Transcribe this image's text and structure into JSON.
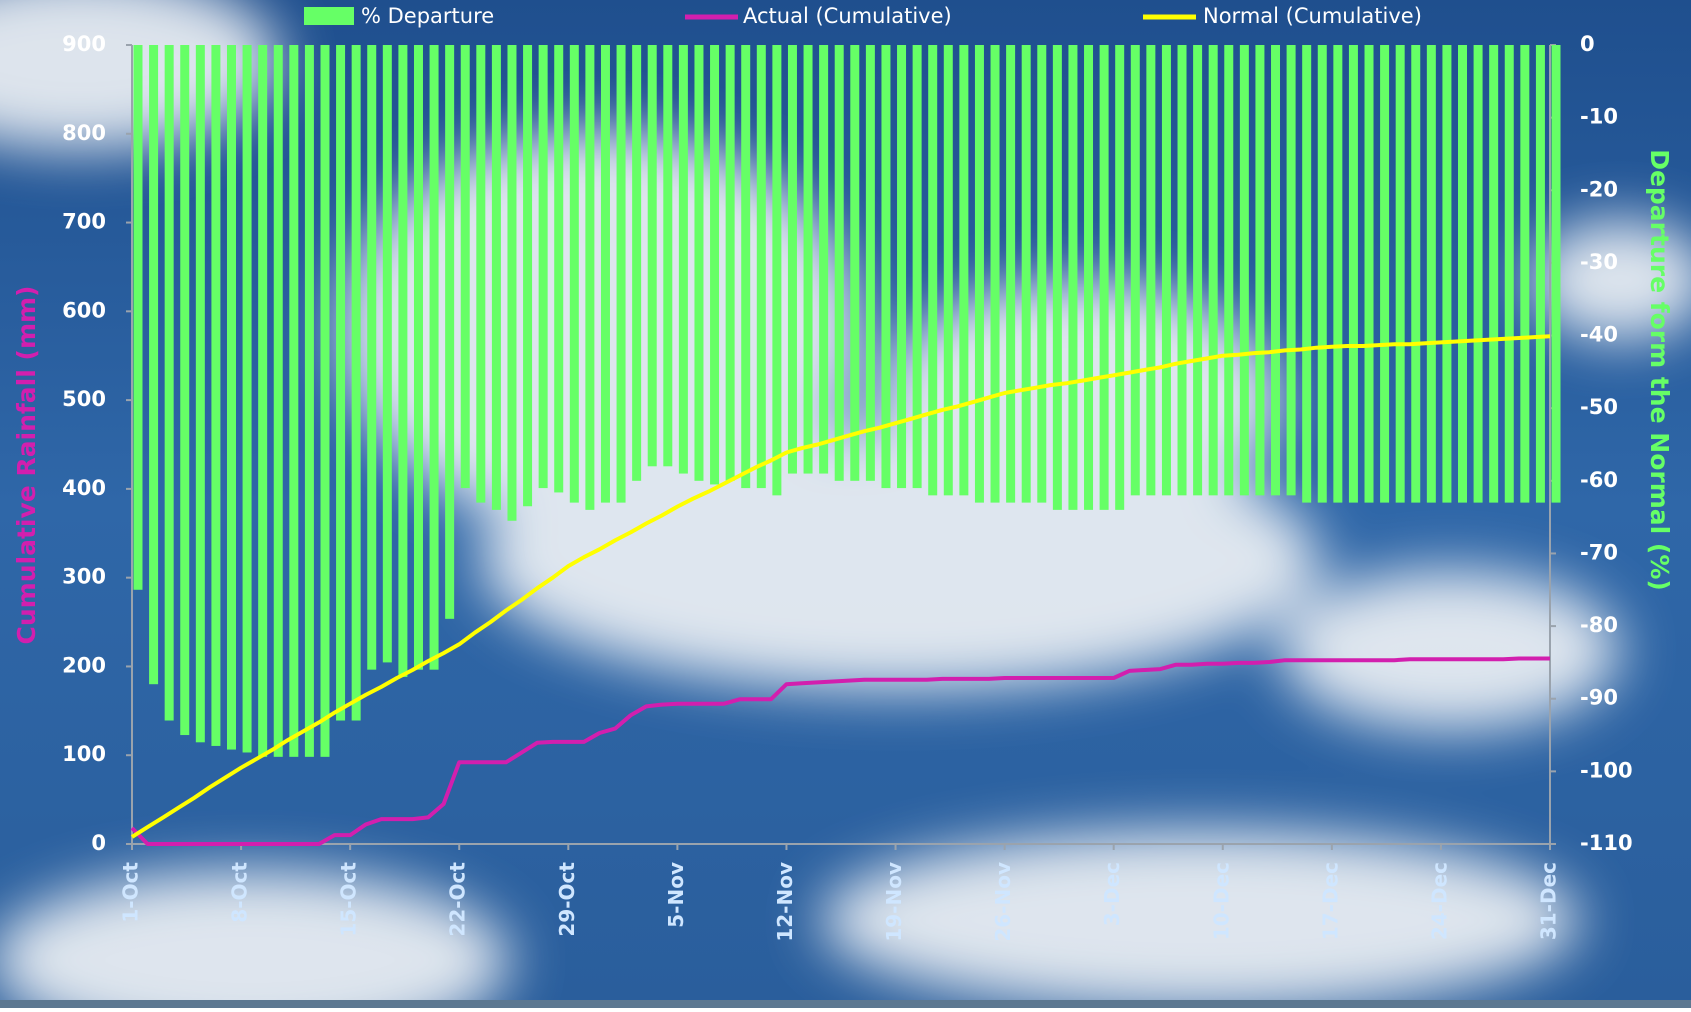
{
  "chart_data": {
    "type": "combo",
    "ylabel": "Cumulative Rainfall (mm)",
    "y2label": "Departure form the Normal (%)",
    "categories": [
      "1-Oct",
      null,
      null,
      null,
      null,
      null,
      null,
      "8-Oct",
      null,
      null,
      null,
      null,
      null,
      null,
      "15-Oct",
      null,
      null,
      null,
      null,
      null,
      null,
      "22-Oct",
      null,
      null,
      null,
      null,
      null,
      null,
      "29-Oct",
      null,
      null,
      null,
      null,
      null,
      null,
      "5-Nov",
      null,
      null,
      null,
      null,
      null,
      null,
      "12-Nov",
      null,
      null,
      null,
      null,
      null,
      null,
      "19-Nov",
      null,
      null,
      null,
      null,
      null,
      null,
      "26-Nov",
      null,
      null,
      null,
      null,
      null,
      null,
      "3-Dec",
      null,
      null,
      null,
      null,
      null,
      null,
      "10-Dec",
      null,
      null,
      null,
      null,
      null,
      null,
      "17-Dec",
      null,
      null,
      null,
      null,
      null,
      null,
      "24-Dec",
      null,
      null,
      null,
      null,
      null,
      null,
      "31-Dec"
    ],
    "series": [
      {
        "name": "% Departure",
        "type": "bar",
        "axis": "y2",
        "color": "#66ff66",
        "values": [
          -75,
          -88,
          -93,
          -95,
          -96,
          -96.5,
          -97,
          -97.4,
          -98,
          -98,
          -98,
          -98,
          -98,
          -93,
          -93,
          -86,
          -85,
          -87,
          -86,
          -86,
          -79,
          -61,
          -63,
          -64,
          -65.5,
          -63.5,
          -61,
          -61.6,
          -63,
          -64,
          -63,
          -63,
          -60,
          -58,
          -58,
          -59,
          -60,
          -60.5,
          -60,
          -61,
          -61,
          -62,
          -59,
          -59,
          -59,
          -60,
          -60,
          -60,
          -61,
          -61,
          -61,
          -62,
          -62,
          -62,
          -63,
          -63,
          -63,
          -63,
          -63,
          -64,
          -64,
          -64,
          -64,
          -64,
          -62,
          -62,
          -62,
          -62,
          -62,
          -62,
          -62,
          -62,
          -62,
          -62,
          -62,
          -63,
          -63,
          -63,
          -63,
          -63,
          -63,
          -63,
          -63,
          -63,
          -63,
          -63,
          -63,
          -63,
          -63,
          -63,
          -63,
          -63
        ]
      },
      {
        "name": "Actual (Cumulative)",
        "type": "line",
        "axis": "y",
        "color": "#d21fae",
        "values": [
          18,
          0,
          0,
          0,
          0,
          0,
          0,
          0,
          0,
          0,
          0,
          0,
          0,
          10,
          10,
          22,
          28,
          28,
          28,
          30,
          45,
          92,
          92,
          92,
          92,
          103,
          114,
          115,
          115,
          115,
          125,
          130,
          145,
          155,
          157,
          158,
          158,
          158,
          158,
          163,
          163,
          163,
          180,
          181,
          182,
          183,
          184,
          185,
          185,
          185,
          185,
          185,
          186,
          186,
          186,
          186,
          187,
          187,
          187,
          187,
          187,
          187,
          187,
          187,
          195,
          196,
          197,
          202,
          202,
          203,
          203,
          204,
          204,
          205,
          207,
          207,
          207,
          207,
          207,
          207,
          207,
          207,
          208,
          208,
          208,
          208,
          208,
          208,
          208,
          209,
          209,
          209
        ]
      },
      {
        "name": "Normal (Cumulative)",
        "type": "line",
        "axis": "y",
        "color": "#ffff00",
        "values": [
          8,
          19,
          30,
          41,
          52,
          64,
          75,
          86,
          96,
          106,
          117,
          127,
          137,
          148,
          158,
          168,
          177,
          187,
          196,
          206,
          215,
          225,
          238,
          250,
          263,
          275,
          288,
          300,
          313,
          323,
          332,
          342,
          351,
          361,
          370,
          380,
          389,
          397,
          406,
          415,
          424,
          432,
          441,
          446,
          450,
          455,
          460,
          465,
          469,
          474,
          479,
          484,
          489,
          493,
          498,
          503,
          508,
          511,
          514,
          517,
          519,
          522,
          525,
          528,
          531,
          534,
          537,
          541,
          544,
          547,
          550,
          551,
          553,
          554,
          556,
          557,
          559,
          560,
          561,
          561,
          562,
          563,
          563,
          564,
          565,
          566,
          567,
          568,
          569,
          570,
          571,
          572
        ]
      }
    ],
    "ylim": [
      0,
      900
    ],
    "yticks": [
      0,
      100,
      200,
      300,
      400,
      500,
      600,
      700,
      800,
      900
    ],
    "y2lim": [
      -110,
      0
    ],
    "y2ticks": [
      0,
      -10,
      -20,
      -30,
      -40,
      -50,
      -60,
      -70,
      -80,
      -90,
      -100,
      -110
    ],
    "legend": "top"
  }
}
